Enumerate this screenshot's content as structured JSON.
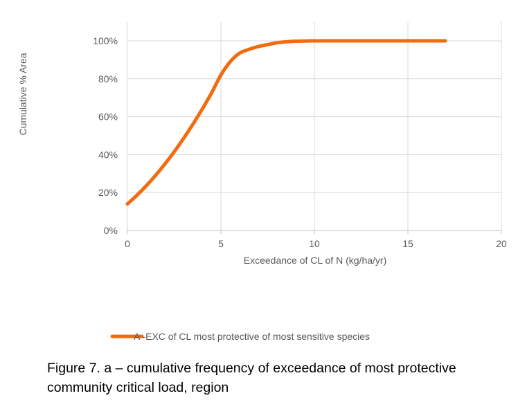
{
  "chart_data": {
    "type": "line",
    "xlabel": "Exceedance of CL of N (kg/ha/yr)",
    "ylabel": "Cumulative % Area",
    "xlim": [
      0,
      20
    ],
    "ylim": [
      0,
      100
    ],
    "x_ticks": [
      "0",
      "5",
      "10",
      "15",
      "20"
    ],
    "y_ticks": [
      "0%",
      "20%",
      "40%",
      "60%",
      "80%",
      "100%"
    ],
    "grid": true,
    "legend_position": "bottom",
    "series": [
      {
        "name": "A -EXC of CL most protective of most sensitive species",
        "color": "#F26B0F",
        "x": [
          0,
          0.5,
          1,
          1.5,
          2,
          2.5,
          3,
          3.5,
          4,
          4.5,
          5,
          5.5,
          6,
          6.5,
          7,
          7.5,
          8,
          8.5,
          9,
          9.5,
          10,
          11,
          12,
          13,
          14,
          15,
          16,
          17
        ],
        "y": [
          14,
          18.5,
          23.5,
          29,
          35,
          41.5,
          48.5,
          56,
          64,
          72.5,
          82,
          89,
          93.5,
          95.5,
          97,
          98,
          99,
          99.5,
          99.8,
          99.9,
          100,
          100,
          100,
          100,
          100,
          100,
          100,
          100
        ]
      }
    ]
  },
  "caption": {
    "line1": "Figure 7. a – cumulative frequency of exceedance of most protective",
    "line2": "community critical load, region"
  }
}
